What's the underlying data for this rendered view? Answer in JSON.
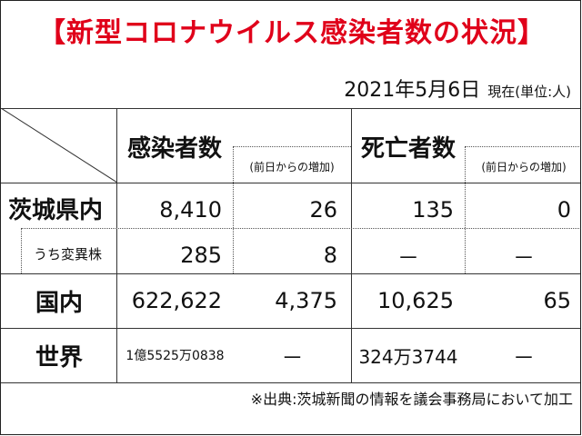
{
  "title": "【新型コロナウイルス感染者数の状況】",
  "date": "2021年5月6日",
  "as_of_unit": "現在(単位:人)",
  "headers": {
    "infected": "感染者数",
    "infected_change": "(前日からの増加)",
    "deaths": "死亡者数",
    "deaths_change": "(前日からの増加)"
  },
  "rows": {
    "ibaraki": {
      "label": "茨城県内",
      "infected": "8,410",
      "infected_change": "26",
      "deaths": "135",
      "deaths_change": "0"
    },
    "variant": {
      "label": "うち変異株",
      "infected": "285",
      "infected_change": "8",
      "deaths": "－",
      "deaths_change": "－"
    },
    "japan": {
      "label": "国内",
      "infected": "622,622",
      "infected_change": "4,375",
      "deaths": "10,625",
      "deaths_change": "65"
    },
    "world": {
      "label": "世界",
      "infected": "1億5525万0838",
      "infected_change": "－",
      "deaths": "324万3744",
      "deaths_change": "－"
    }
  },
  "source": "※出典:茨城新聞の情報を議会事務局において加工"
}
